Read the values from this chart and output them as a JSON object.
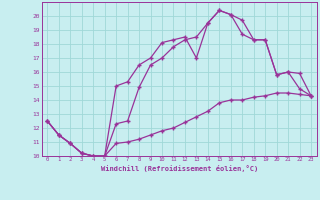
{
  "xlabel": "Windchill (Refroidissement éolien,°C)",
  "xlim": [
    -0.5,
    23.5
  ],
  "ylim": [
    10,
    21
  ],
  "xticks": [
    0,
    1,
    2,
    3,
    4,
    5,
    6,
    7,
    8,
    9,
    10,
    11,
    12,
    13,
    14,
    15,
    16,
    17,
    18,
    19,
    20,
    21,
    22,
    23
  ],
  "yticks": [
    10,
    11,
    12,
    13,
    14,
    15,
    16,
    17,
    18,
    19,
    20
  ],
  "bg_color": "#c8eef0",
  "grid_color": "#a0d8d8",
  "line_color": "#993399",
  "line1_x": [
    0,
    1,
    2,
    3,
    4,
    5,
    6,
    7,
    8,
    9,
    10,
    11,
    12,
    13,
    14,
    15,
    16,
    17,
    18,
    19,
    20,
    21,
    22,
    23
  ],
  "line1_y": [
    12.5,
    11.5,
    10.9,
    10.2,
    10.0,
    10.0,
    10.9,
    11.0,
    11.2,
    11.5,
    11.8,
    12.0,
    12.4,
    12.8,
    13.2,
    13.8,
    14.0,
    14.0,
    14.2,
    14.3,
    14.5,
    14.5,
    14.4,
    14.3
  ],
  "line2_x": [
    0,
    1,
    2,
    3,
    4,
    5,
    6,
    7,
    8,
    9,
    10,
    11,
    12,
    13,
    14,
    15,
    16,
    17,
    18,
    19,
    20,
    21,
    22,
    23
  ],
  "line2_y": [
    12.5,
    11.5,
    10.9,
    10.2,
    10.0,
    10.0,
    12.3,
    12.5,
    14.9,
    16.5,
    17.0,
    17.8,
    18.3,
    18.5,
    19.5,
    20.4,
    20.1,
    19.7,
    18.3,
    18.3,
    15.8,
    16.0,
    14.8,
    14.3
  ],
  "line3_x": [
    0,
    1,
    2,
    3,
    4,
    5,
    6,
    7,
    8,
    9,
    10,
    11,
    12,
    13,
    14,
    15,
    16,
    17,
    18,
    19,
    20,
    21,
    22,
    23
  ],
  "line3_y": [
    12.5,
    11.5,
    10.9,
    10.2,
    10.0,
    10.0,
    15.0,
    15.3,
    16.5,
    17.0,
    18.1,
    18.3,
    18.5,
    17.0,
    19.5,
    20.4,
    20.1,
    18.7,
    18.3,
    18.3,
    15.8,
    16.0,
    15.9,
    14.3
  ],
  "marker": "+"
}
